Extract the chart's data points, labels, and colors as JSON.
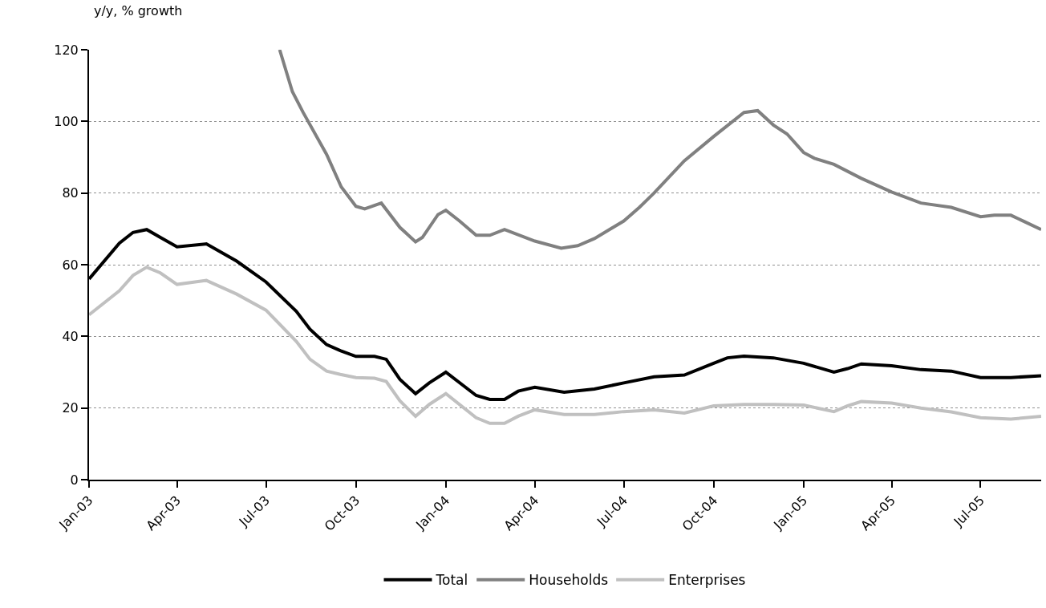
{
  "chart_data": {
    "type": "line",
    "title": "y/y, % growth",
    "xlim": [
      "2003-01-01",
      "2005-09-01"
    ],
    "xticks": [
      {
        "value": "2003-01-01",
        "label": "Jan-03"
      },
      {
        "value": "2003-04-01",
        "label": "Apr-03"
      },
      {
        "value": "2003-07-01",
        "label": "Jul-03"
      },
      {
        "value": "2003-10-01",
        "label": "Oct-03"
      },
      {
        "value": "2004-01-01",
        "label": "Jan-04"
      },
      {
        "value": "2004-04-01",
        "label": "Apr-04"
      },
      {
        "value": "2004-07-01",
        "label": "Jul-04"
      },
      {
        "value": "2004-10-01",
        "label": "Oct-04"
      },
      {
        "value": "2005-01-01",
        "label": "Jan-05"
      },
      {
        "value": "2005-04-01",
        "label": "Apr-05"
      },
      {
        "value": "2005-07-01",
        "label": "Jul-05"
      }
    ],
    "ylim": [
      0,
      120
    ],
    "yticks": [
      0,
      20,
      40,
      60,
      80,
      100,
      120
    ],
    "grid": "y",
    "legend": "bottom",
    "marker": "none",
    "line_style": "solid",
    "series": [
      {
        "name": "Total",
        "color": "#000000",
        "x": [
          "2003-01-01",
          "2003-02-01",
          "2003-02-15",
          "2003-03-01",
          "2003-03-15",
          "2003-04-01",
          "2003-05-01",
          "2003-06-01",
          "2003-07-01",
          "2003-08-01",
          "2003-08-15",
          "2003-09-01",
          "2003-09-15",
          "2003-10-01",
          "2003-10-20",
          "2003-11-01",
          "2003-11-15",
          "2003-12-01",
          "2003-12-15",
          "2004-01-01",
          "2004-02-01",
          "2004-02-15",
          "2004-03-01",
          "2004-03-15",
          "2004-04-01",
          "2004-05-01",
          "2004-06-01",
          "2004-07-01",
          "2004-08-01",
          "2004-09-01",
          "2004-10-01",
          "2004-10-15",
          "2004-11-01",
          "2004-12-01",
          "2005-01-01",
          "2005-02-01",
          "2005-02-15",
          "2005-03-01",
          "2005-04-01",
          "2005-05-01",
          "2005-06-01",
          "2005-07-01",
          "2005-08-01",
          "2005-09-01"
        ],
        "values": [
          56,
          66,
          69,
          69.8,
          67.6,
          65,
          65.8,
          61,
          55.2,
          47,
          42,
          37.7,
          36,
          34.4,
          34.4,
          33.6,
          28,
          24,
          27,
          30,
          23.5,
          22.4,
          22.4,
          24.7,
          25.8,
          24.4,
          25.3,
          27,
          28.7,
          29.2,
          32.5,
          34,
          34.5,
          34,
          32.5,
          30,
          31,
          32.3,
          31.8,
          30.7,
          30.3,
          28.5,
          28.5,
          29
        ]
      },
      {
        "name": "Households",
        "color": "#808080",
        "x": [
          "2003-07-15",
          "2003-07-28",
          "2003-08-08",
          "2003-09-01",
          "2003-09-16",
          "2003-10-01",
          "2003-10-10",
          "2003-10-27",
          "2003-11-15",
          "2003-12-01",
          "2003-12-08",
          "2003-12-24",
          "2004-01-01",
          "2004-01-15",
          "2004-02-01",
          "2004-02-15",
          "2004-03-01",
          "2004-04-01",
          "2004-04-28",
          "2004-05-15",
          "2004-06-01",
          "2004-07-01",
          "2004-07-17",
          "2004-08-01",
          "2004-09-01",
          "2004-10-01",
          "2004-11-01",
          "2004-11-15",
          "2004-12-01",
          "2004-12-15",
          "2005-01-01",
          "2005-01-12",
          "2005-02-01",
          "2005-03-01",
          "2005-04-01",
          "2005-05-01",
          "2005-06-01",
          "2005-07-01",
          "2005-07-15",
          "2005-08-01",
          "2005-08-15",
          "2005-09-01"
        ],
        "values": [
          120,
          108.3,
          102.5,
          90.8,
          81.7,
          76.3,
          75.6,
          77.2,
          70.4,
          66.4,
          67.6,
          74,
          75.2,
          72.2,
          68.2,
          68.2,
          69.8,
          66.6,
          64.6,
          65.3,
          67.3,
          72.2,
          76,
          80,
          89,
          95.8,
          102.5,
          103,
          99,
          96.5,
          91.3,
          89.7,
          88,
          84.1,
          80.3,
          77.2,
          76,
          73.4,
          73.8,
          73.8,
          72,
          69.8
        ]
      },
      {
        "name": "Enterprises",
        "color": "#c0c0c0",
        "x": [
          "2003-01-01",
          "2003-02-01",
          "2003-02-15",
          "2003-03-01",
          "2003-03-15",
          "2003-04-01",
          "2003-05-01",
          "2003-06-01",
          "2003-07-01",
          "2003-08-01",
          "2003-08-15",
          "2003-09-01",
          "2003-09-15",
          "2003-10-01",
          "2003-10-20",
          "2003-11-01",
          "2003-11-15",
          "2003-12-01",
          "2003-12-15",
          "2004-01-01",
          "2004-02-01",
          "2004-02-15",
          "2004-03-01",
          "2004-03-15",
          "2004-04-01",
          "2004-05-01",
          "2004-06-01",
          "2004-07-01",
          "2004-08-01",
          "2004-09-01",
          "2004-10-01",
          "2004-11-01",
          "2004-12-01",
          "2005-01-01",
          "2005-02-01",
          "2005-02-15",
          "2005-03-01",
          "2005-04-01",
          "2005-05-01",
          "2005-06-01",
          "2005-07-01",
          "2005-08-01",
          "2005-09-01"
        ],
        "values": [
          46,
          52.7,
          57,
          59.3,
          57.7,
          54.5,
          55.6,
          51.8,
          47.3,
          38.6,
          33.6,
          30.3,
          29.4,
          28.5,
          28.3,
          27.4,
          22,
          17.7,
          21,
          24,
          17.3,
          15.7,
          15.7,
          17.7,
          19.5,
          18.2,
          18.2,
          19,
          19.5,
          18.6,
          20.6,
          21,
          21,
          20.8,
          19,
          20.6,
          21.8,
          21.4,
          20,
          18.9,
          17.3,
          16.9,
          17.7
        ]
      }
    ]
  }
}
